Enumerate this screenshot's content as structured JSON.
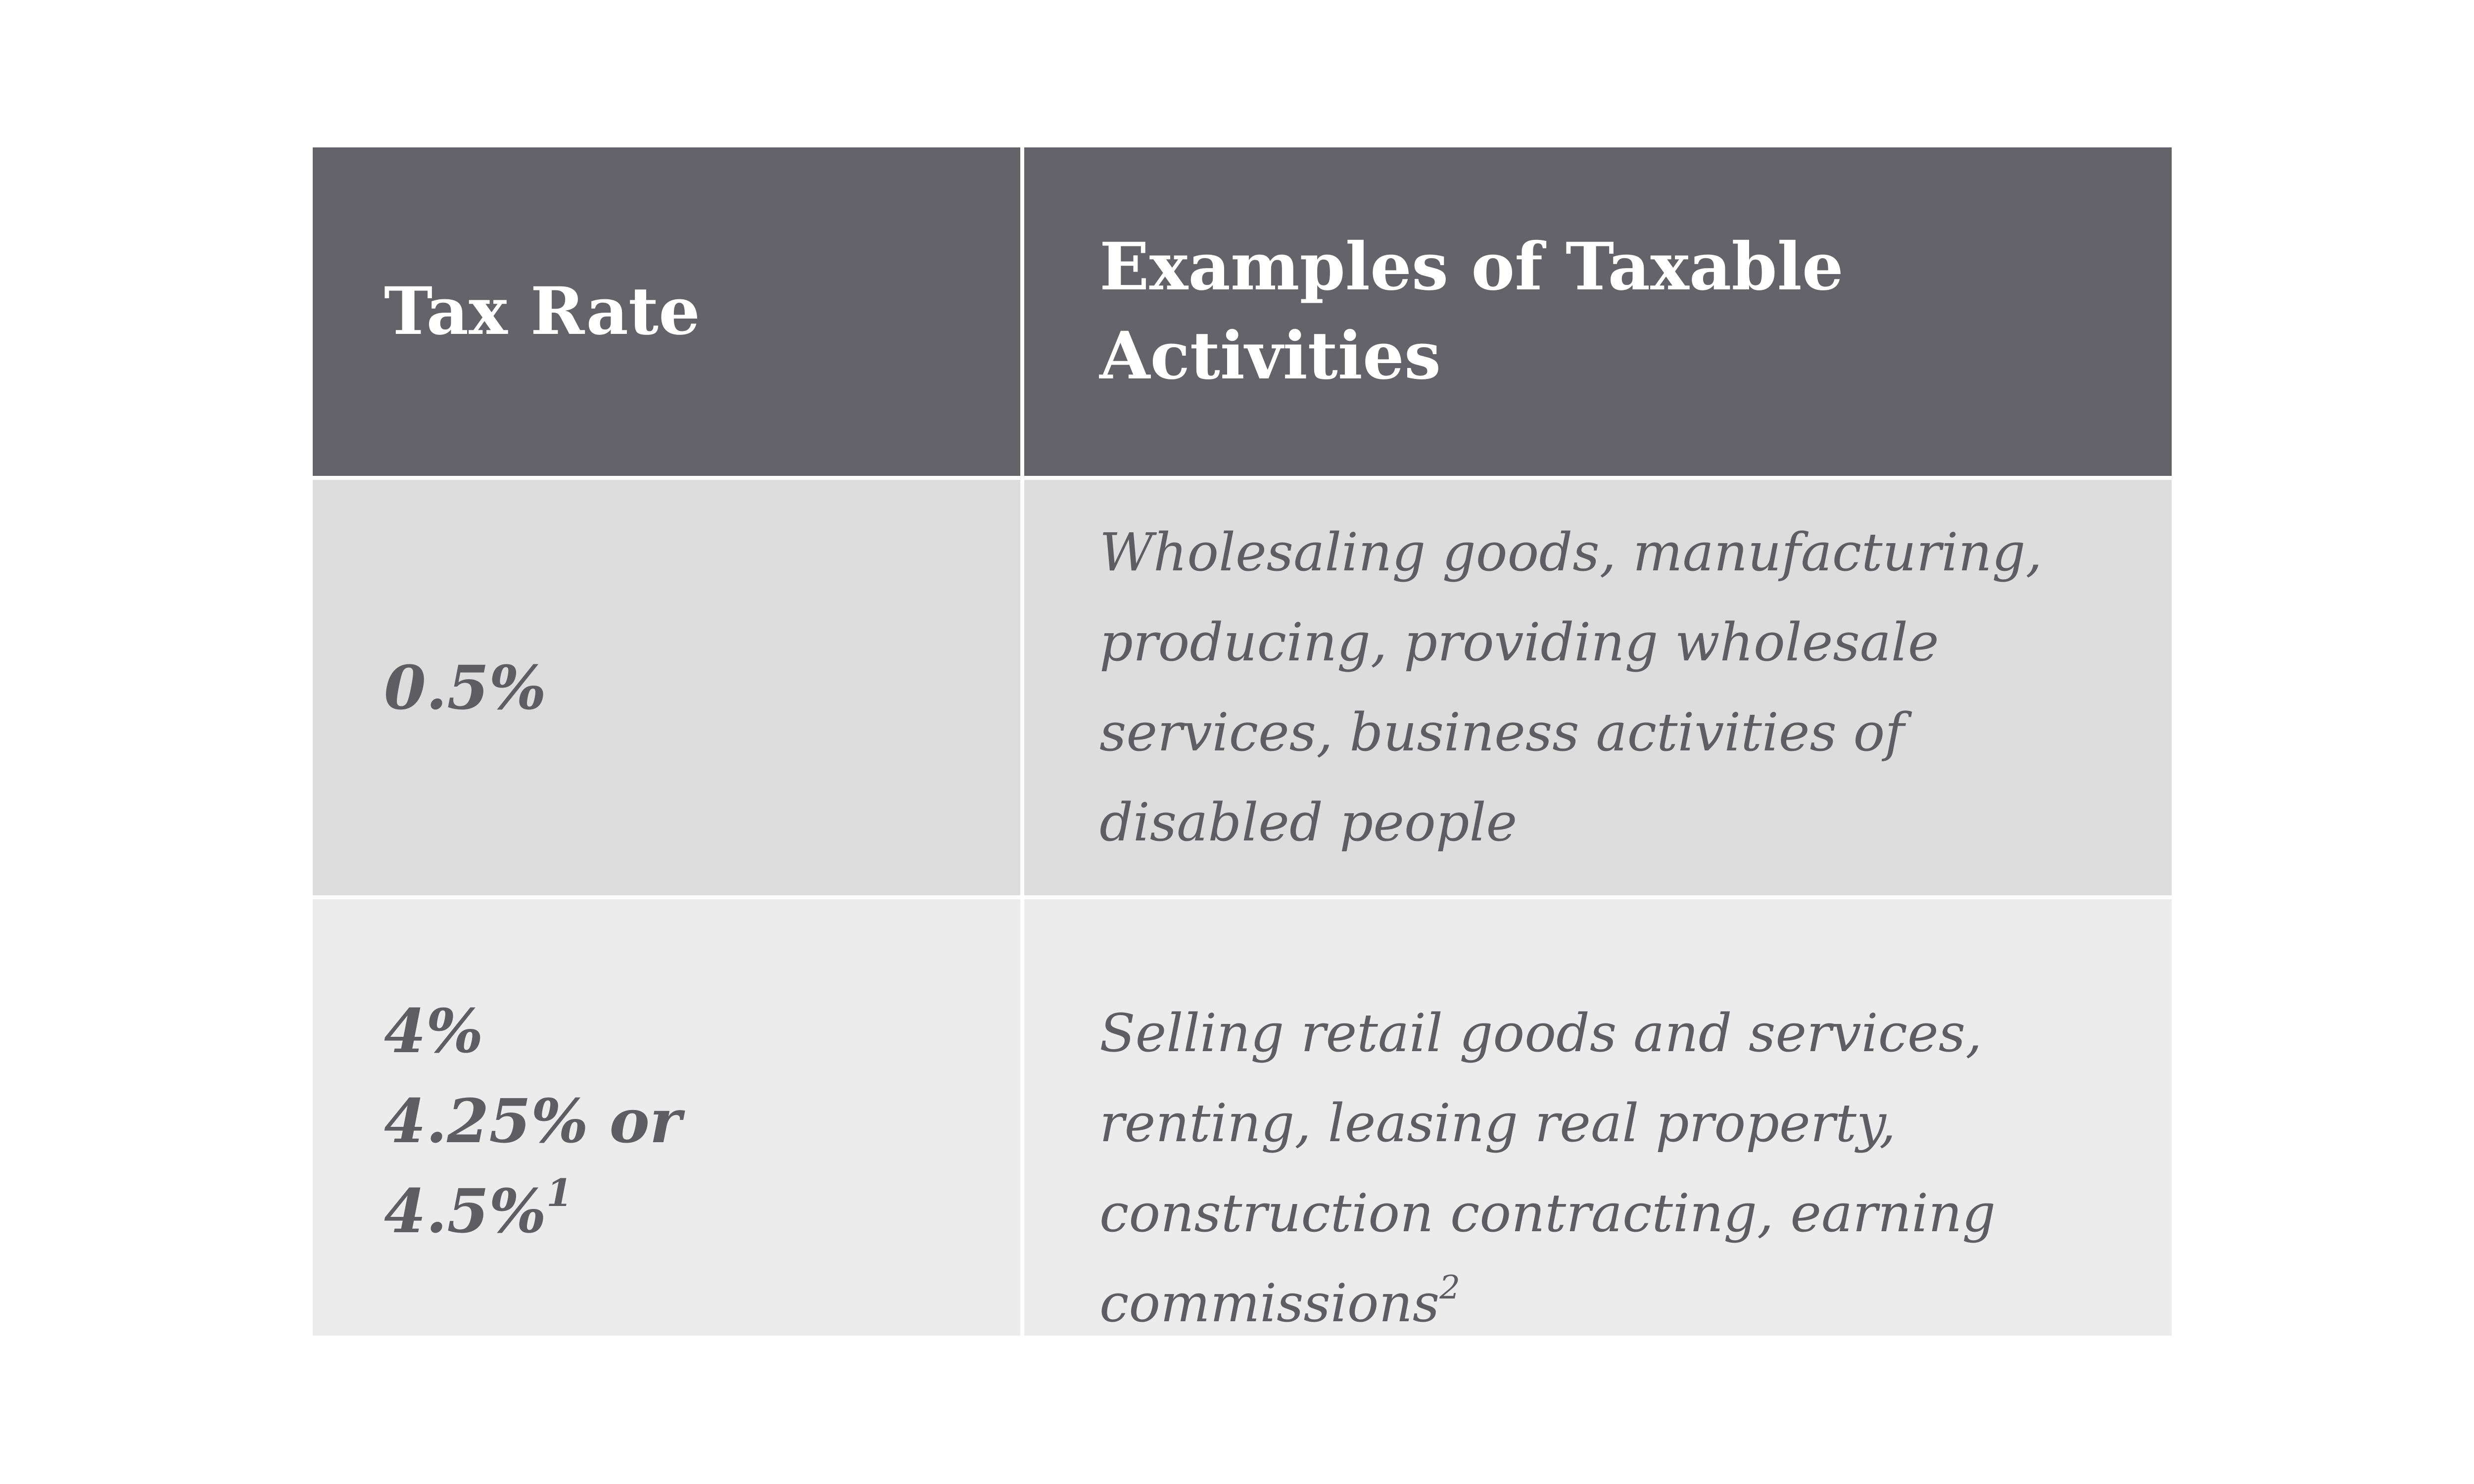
{
  "table": {
    "header": {
      "rate": "Tax Rate",
      "examples": "Examples of Taxable Activities"
    },
    "rows": [
      {
        "rate_lines": [
          "0.5%"
        ],
        "examples": "Wholesaling goods, manufacturing, producing, providing wholesale services, business activities of disabled people"
      },
      {
        "rate_lines": [
          "4%",
          "4.25% or",
          "4.5%"
        ],
        "rate_footnote": "1",
        "examples": "Selling retail goods and services, renting, leasing real property, construction contracting, earning commissions",
        "examples_footnote": "2"
      }
    ]
  },
  "colors": {
    "header_bg": "#646369",
    "header_text": "#ffffff",
    "row1_bg": "#dddddd",
    "row2_bg": "#ececec",
    "body_text": "#5e5e62"
  }
}
